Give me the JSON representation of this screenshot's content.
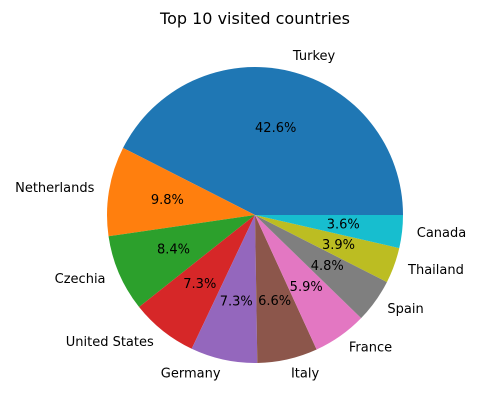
{
  "chart_data": {
    "type": "pie",
    "title": "Top 10 visited countries",
    "start_angle_deg": 0,
    "direction": "counterclockwise",
    "colors": [
      "#1f77b4",
      "#ff7f0e",
      "#2ca02c",
      "#d62728",
      "#9467bd",
      "#8c564b",
      "#e377c2",
      "#7f7f7f",
      "#bcbd22",
      "#17becf"
    ],
    "slices": [
      {
        "label": "Turkey",
        "pct": 42.6,
        "pct_label": "42.6%"
      },
      {
        "label": "Netherlands",
        "pct": 9.8,
        "pct_label": "9.8%"
      },
      {
        "label": "Czechia",
        "pct": 8.4,
        "pct_label": "8.4%"
      },
      {
        "label": "United States",
        "pct": 7.3,
        "pct_label": "7.3%"
      },
      {
        "label": "Germany",
        "pct": 7.3,
        "pct_label": "7.3%"
      },
      {
        "label": "Italy",
        "pct": 6.6,
        "pct_label": "6.6%"
      },
      {
        "label": "France",
        "pct": 5.9,
        "pct_label": "5.9%"
      },
      {
        "label": "Spain",
        "pct": 4.8,
        "pct_label": "4.8%"
      },
      {
        "label": "Thailand",
        "pct": 3.9,
        "pct_label": "3.9%"
      },
      {
        "label": "Canada",
        "pct": 3.6,
        "pct_label": "3.6%"
      }
    ]
  }
}
